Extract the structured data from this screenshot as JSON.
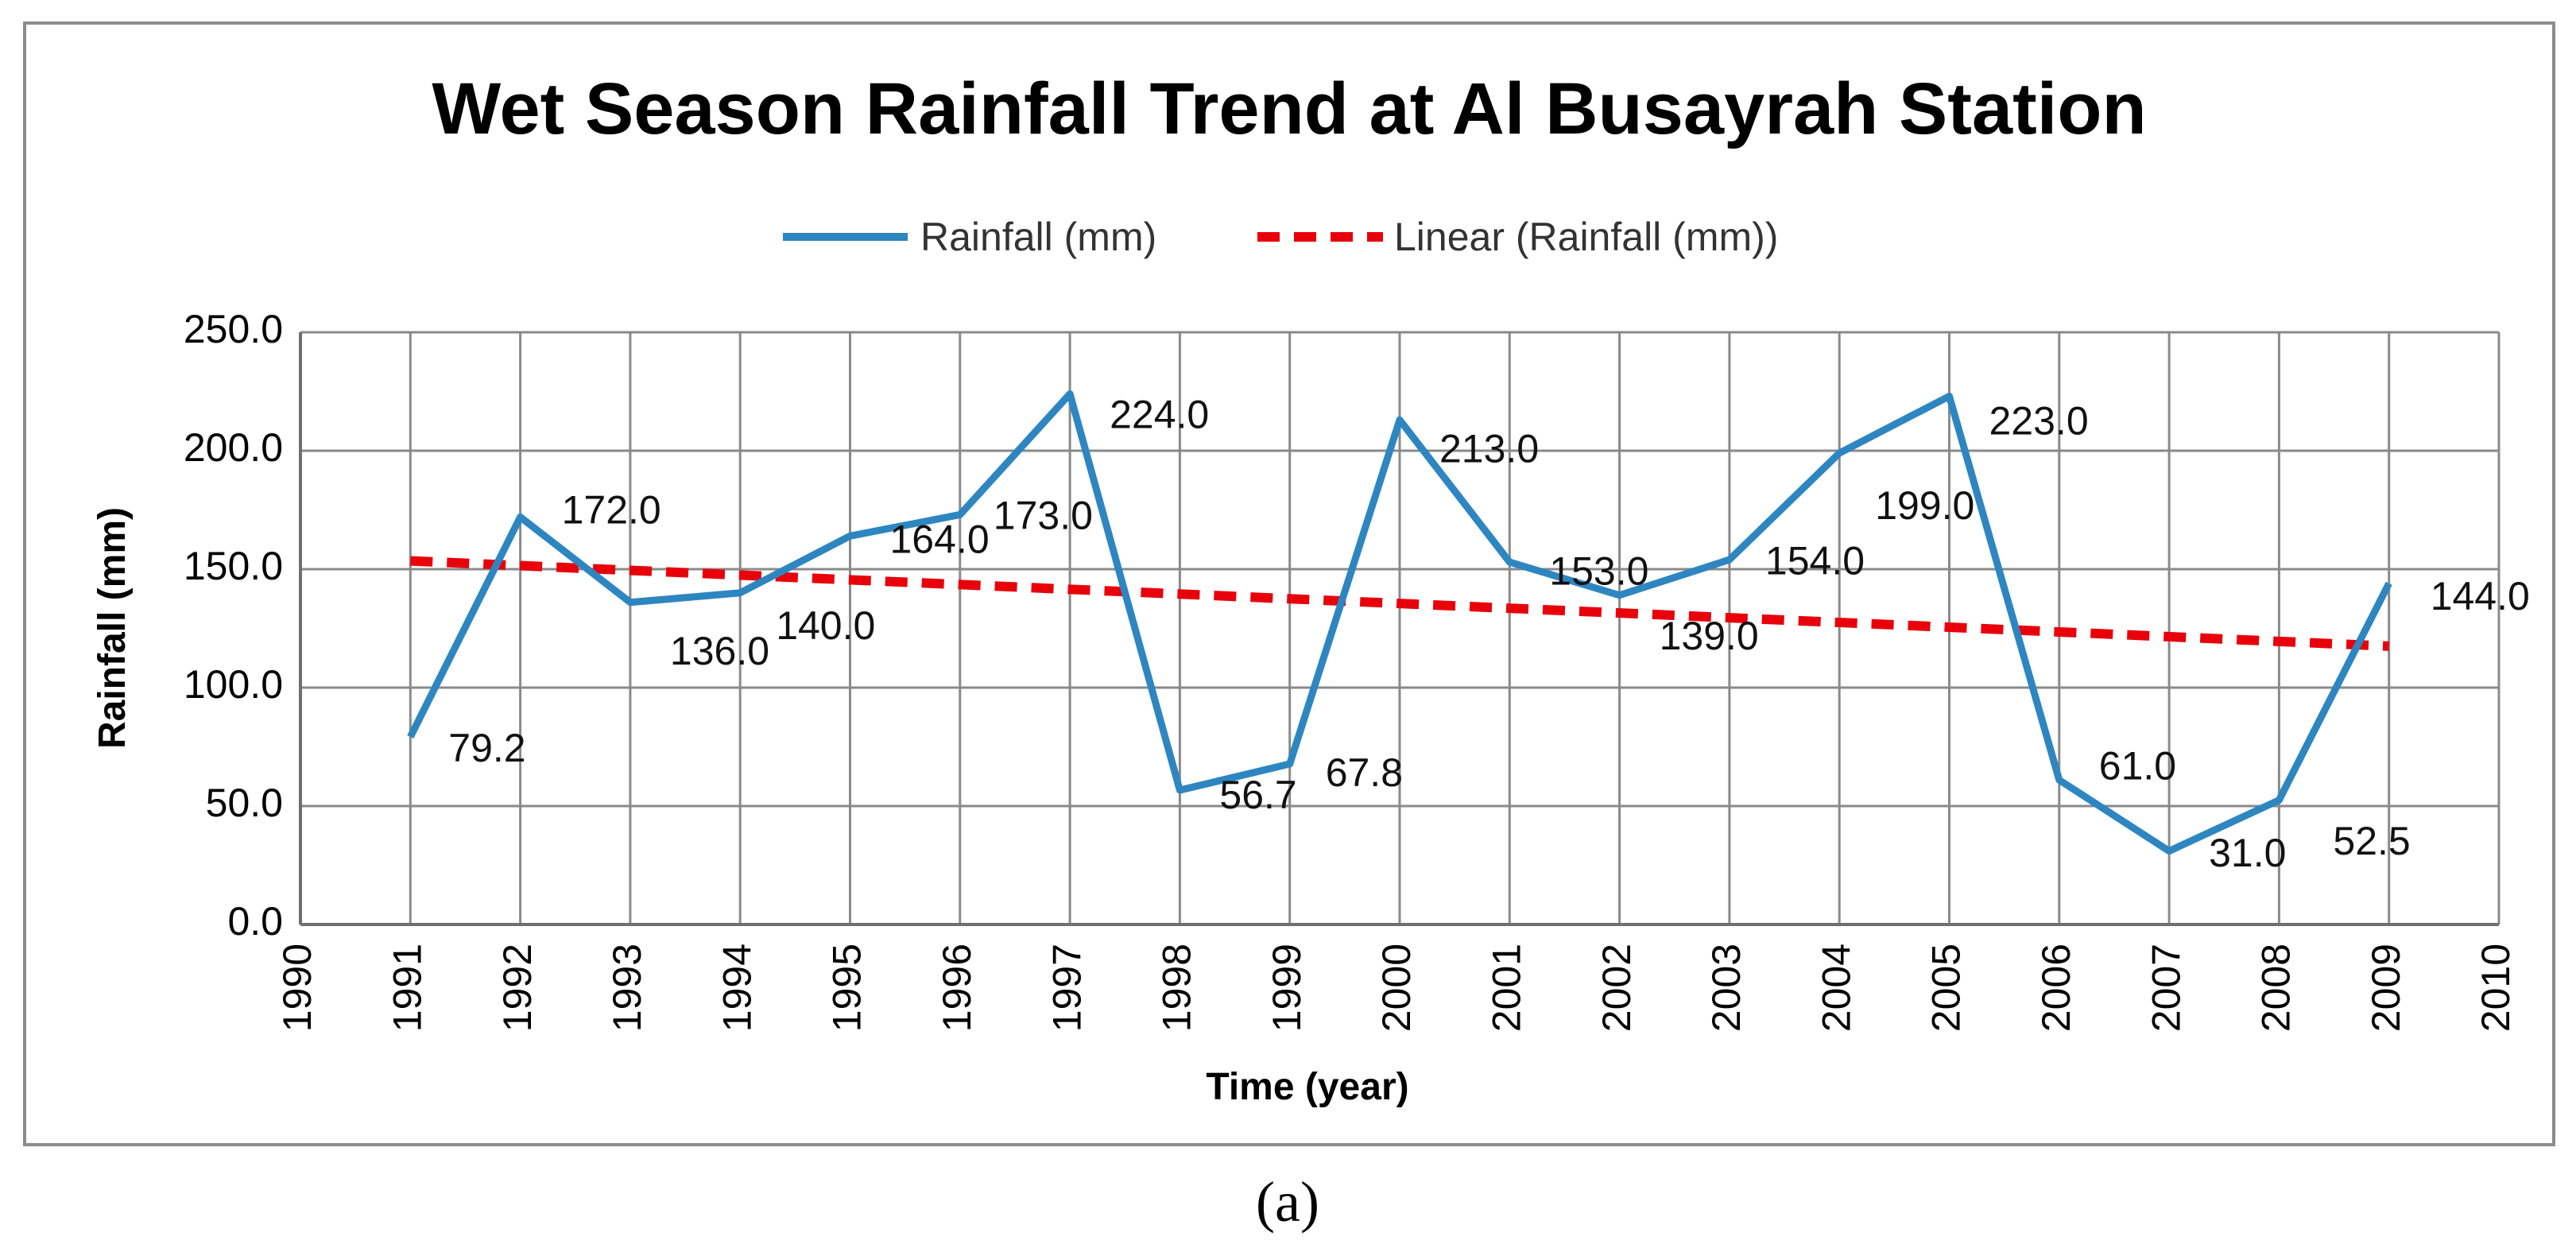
{
  "chart_data": {
    "type": "line",
    "title": "Wet Season Rainfall Trend at Al Busayrah Station",
    "xlabel": "Time (year)",
    "ylabel": "Rainfall (mm)",
    "x_ticks": [
      "1990",
      "1991",
      "1992",
      "1993",
      "1994",
      "1995",
      "1996",
      "1997",
      "1998",
      "1999",
      "2000",
      "2001",
      "2002",
      "2003",
      "2004",
      "2005",
      "2006",
      "2007",
      "2008",
      "2009",
      "2010"
    ],
    "y_ticks": [
      "0.0",
      "50.0",
      "100.0",
      "150.0",
      "200.0",
      "250.0"
    ],
    "xlim": [
      1990,
      2010
    ],
    "ylim": [
      0,
      250
    ],
    "grid": true,
    "legend_position": "top-center",
    "series": [
      {
        "name": "Rainfall (mm)",
        "style": "solid",
        "color": "#2E86C1",
        "x": [
          1991,
          1992,
          1993,
          1994,
          1995,
          1996,
          1997,
          1998,
          1999,
          2000,
          2001,
          2002,
          2003,
          2004,
          2005,
          2006,
          2007,
          2008,
          2009
        ],
        "values": [
          79.2,
          172.0,
          136.0,
          140.0,
          164.0,
          173.0,
          224.0,
          56.7,
          67.8,
          213.0,
          153.0,
          139.0,
          154.0,
          199.0,
          223.0,
          61.0,
          31.0,
          52.5,
          144.0
        ],
        "labels": [
          "79.2",
          "172.0",
          "136.0",
          "140.0",
          "164.0",
          "173.0",
          "224.0",
          "56.7",
          "67.8",
          "213.0",
          "153.0",
          "139.0",
          "154.0",
          "199.0",
          "223.0",
          "61.0",
          "31.0",
          "52.5",
          "144.0"
        ]
      },
      {
        "name": "Linear (Rainfall (mm))",
        "style": "dashed",
        "color": "#E8000B",
        "x": [
          1991,
          2009
        ],
        "values": [
          153.5,
          117.5
        ]
      }
    ]
  },
  "caption": "(a)"
}
